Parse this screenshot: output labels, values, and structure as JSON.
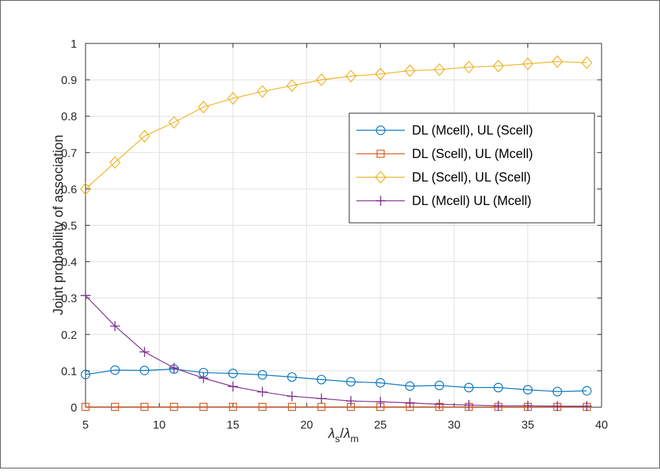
{
  "chart_data": {
    "type": "line",
    "xlabel": "λs/λm",
    "xlabel_parts": {
      "symbol1": "λ",
      "sub1": "s",
      "slash": "/",
      "symbol2": "λ",
      "sub2": "m"
    },
    "ylabel": "Joint probability of association",
    "xlim": [
      5,
      40
    ],
    "ylim": [
      0,
      1
    ],
    "xticks": [
      5,
      10,
      15,
      20,
      25,
      30,
      35,
      40
    ],
    "xtick_labels": [
      "5",
      "10",
      "15",
      "20",
      "25",
      "30",
      "35",
      "40"
    ],
    "yticks": [
      0,
      0.1,
      0.2,
      0.3,
      0.4,
      0.5,
      0.6,
      0.7,
      0.8,
      0.9,
      1
    ],
    "ytick_labels": [
      "0",
      "0.1",
      "0.2",
      "0.3",
      "0.4",
      "0.5",
      "0.6",
      "0.7",
      "0.8",
      "0.9",
      "1"
    ],
    "grid": true,
    "legend_position": "upper-right",
    "x": [
      5,
      7,
      9,
      11,
      13,
      15,
      17,
      19,
      21,
      23,
      25,
      27,
      29,
      31,
      33,
      35,
      37,
      39
    ],
    "series": [
      {
        "name": "DL (Mcell), UL (Scell)",
        "color": "#0072BD",
        "marker": "circle",
        "values": [
          0.09,
          0.102,
          0.101,
          0.105,
          0.095,
          0.093,
          0.089,
          0.083,
          0.076,
          0.07,
          0.067,
          0.058,
          0.06,
          0.054,
          0.054,
          0.048,
          0.043,
          0.045
        ]
      },
      {
        "name": "DL (Scell), UL (Mcell)",
        "color": "#D95319",
        "marker": "square",
        "values": [
          0.001,
          0.001,
          0.001,
          0.001,
          0.001,
          0.001,
          0.001,
          0.001,
          0.001,
          0.001,
          0.001,
          0.001,
          0.001,
          0.001,
          0.001,
          0.001,
          0.001,
          0.001
        ]
      },
      {
        "name": "DL (Scell), UL (Scell)",
        "color": "#EDB120",
        "marker": "diamond",
        "values": [
          0.6,
          0.673,
          0.745,
          0.783,
          0.825,
          0.849,
          0.868,
          0.884,
          0.9,
          0.91,
          0.916,
          0.925,
          0.928,
          0.935,
          0.938,
          0.944,
          0.95,
          0.947
        ]
      },
      {
        "name": "DL (Mcell) UL (Mcell)",
        "color": "#7E2F8E",
        "marker": "plus",
        "values": [
          0.307,
          0.223,
          0.152,
          0.108,
          0.08,
          0.057,
          0.042,
          0.03,
          0.024,
          0.017,
          0.015,
          0.012,
          0.008,
          0.006,
          0.004,
          0.004,
          0.003,
          0.003
        ]
      }
    ]
  }
}
